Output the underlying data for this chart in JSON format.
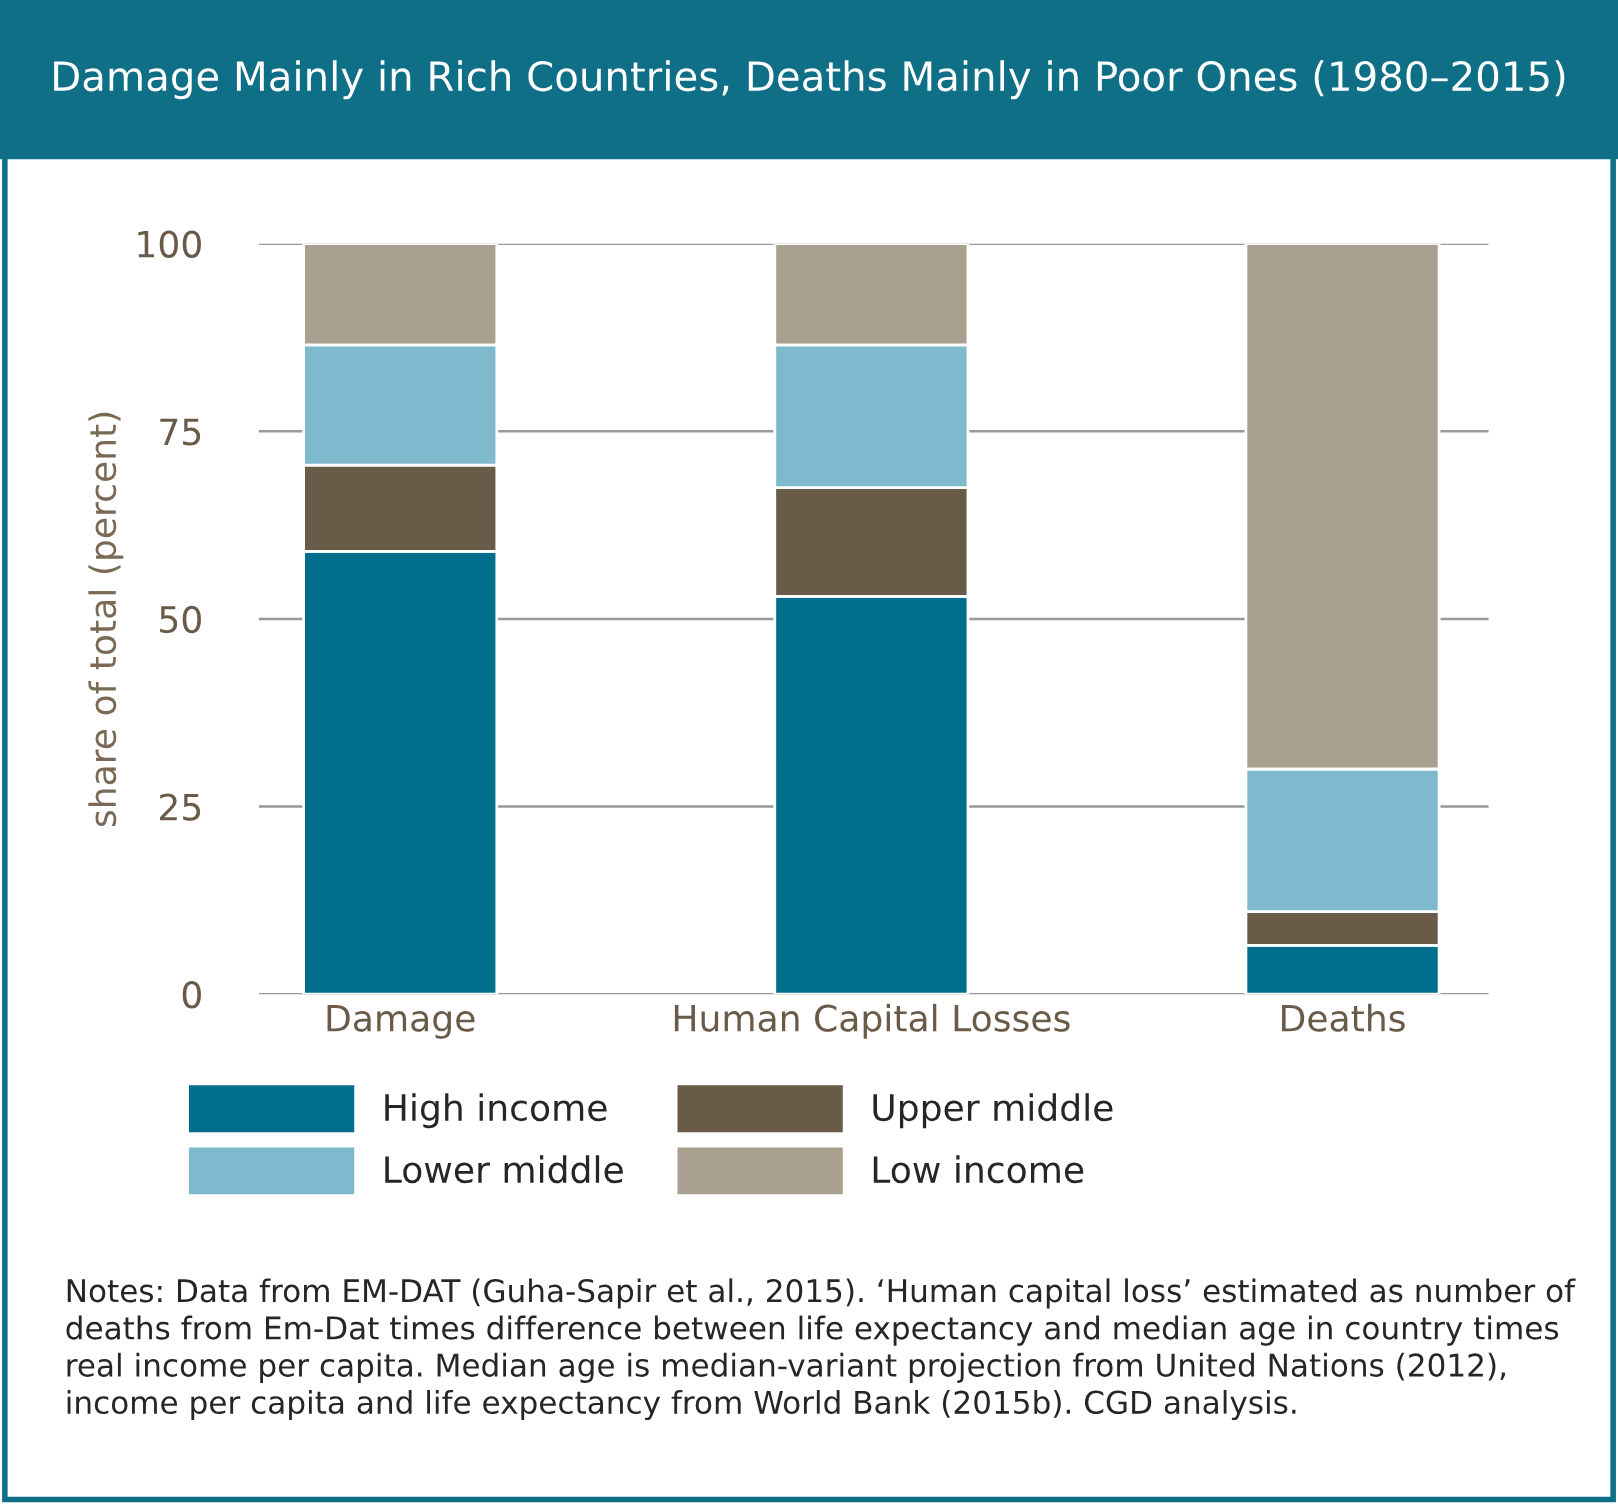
{
  "chart_data": {
    "type": "bar",
    "title": "Damage Mainly in Rich Countries, Deaths Mainly in Poor Ones (1980–2015)",
    "ylabel": "share of total (percent)",
    "categories": [
      "Damage",
      "Human Capital Losses",
      "Deaths"
    ],
    "stacked": true,
    "series": [
      {
        "name": "High income",
        "color": "#006e8c",
        "values": [
          59,
          53,
          6.5
        ]
      },
      {
        "name": "Upper middle",
        "color": "#6a5a48",
        "values": [
          11.5,
          14.5,
          4.5
        ]
      },
      {
        "name": "Lower middle",
        "color": "#7fb9cd",
        "values": [
          16,
          19,
          19
        ]
      },
      {
        "name": "Low income",
        "color": "#a9a08f",
        "values": [
          13.5,
          13.5,
          70
        ]
      }
    ],
    "ylim": [
      0,
      100
    ],
    "yticks": [
      0,
      25,
      50,
      75,
      100
    ],
    "grid": "y",
    "legend": "bottom",
    "annotations": [
      "Notes: Data from EM-DAT (Guha-Sapir et al., 2015). ‘Human capital loss’ estimated as number of deaths from Em-Dat times difference between life expectancy and median age in country times real income per capita. Median age is median-variant projection from United Nations (2012), income per capita and life expectancy from World Bank (2015b). CGD analysis."
    ]
  }
}
